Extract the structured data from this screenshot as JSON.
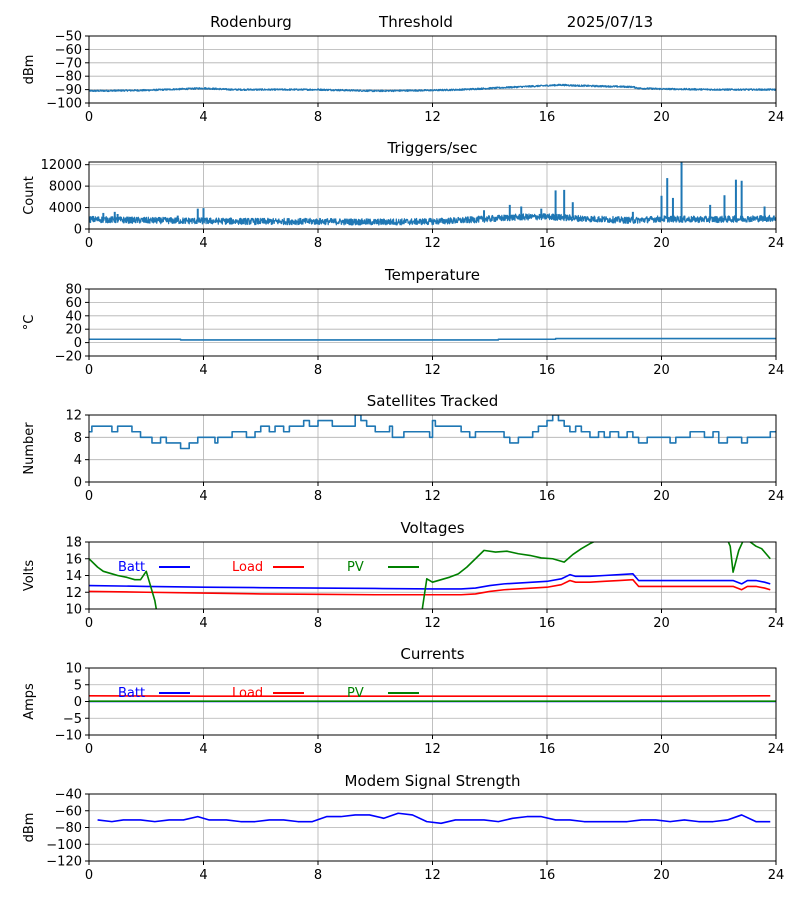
{
  "header": {
    "station": "Rodenburg",
    "mode": "Threshold",
    "date": "2025/07/13"
  },
  "chart_data": [
    {
      "id": "threshold",
      "type": "line",
      "title": "",
      "ylabel": "dBm",
      "xlim": [
        0,
        24
      ],
      "xticks": [
        0,
        4,
        8,
        12,
        16,
        20,
        24
      ],
      "ylim": [
        -100,
        -50
      ],
      "yticks": [
        -100,
        -90,
        -80,
        -70,
        -60,
        -50
      ],
      "grid": true,
      "series": [
        {
          "name": "",
          "color": "#1f77b4",
          "noise": 0.6,
          "x": [
            0,
            2,
            4,
            5,
            8,
            10,
            12,
            13,
            14,
            15,
            16,
            16.5,
            17,
            18,
            19,
            19.2,
            20,
            22,
            24
          ],
          "y": [
            -91,
            -90.5,
            -89,
            -90,
            -90,
            -91,
            -90.5,
            -90,
            -89,
            -88,
            -87,
            -86.5,
            -87,
            -87.5,
            -88,
            -89,
            -89.5,
            -90,
            -90
          ]
        }
      ]
    },
    {
      "id": "triggers",
      "type": "line",
      "title": "Triggers/sec",
      "ylabel": "Count",
      "xlim": [
        0,
        24
      ],
      "xticks": [
        0,
        4,
        8,
        12,
        16,
        20,
        24
      ],
      "ylim": [
        0,
        12500
      ],
      "yticks": [
        0,
        4000,
        8000,
        12000
      ],
      "grid": true,
      "series": [
        {
          "name": "",
          "color": "#1f77b4",
          "noise": 600,
          "x": [
            0,
            2,
            4,
            6,
            8,
            10,
            12,
            13,
            14,
            15,
            16,
            17,
            18,
            19,
            20,
            21,
            22,
            23,
            24
          ],
          "y": [
            1800,
            1600,
            1500,
            1400,
            1400,
            1300,
            1400,
            1600,
            1900,
            2200,
            2300,
            2000,
            1800,
            1600,
            1900,
            1800,
            1800,
            1900,
            2000
          ]
        }
      ],
      "spikes": [
        {
          "x": 0.5,
          "y": 3000
        },
        {
          "x": 0.9,
          "y": 3200
        },
        {
          "x": 1.0,
          "y": 2800
        },
        {
          "x": 3.1,
          "y": 2500
        },
        {
          "x": 3.8,
          "y": 3800
        },
        {
          "x": 4.0,
          "y": 3900
        },
        {
          "x": 13.8,
          "y": 3500
        },
        {
          "x": 14.7,
          "y": 4500
        },
        {
          "x": 15.1,
          "y": 4200
        },
        {
          "x": 15.8,
          "y": 3800
        },
        {
          "x": 16.3,
          "y": 7200
        },
        {
          "x": 16.6,
          "y": 7300
        },
        {
          "x": 16.9,
          "y": 5000
        },
        {
          "x": 19.0,
          "y": 3200
        },
        {
          "x": 20.0,
          "y": 6200
        },
        {
          "x": 20.2,
          "y": 9500
        },
        {
          "x": 20.4,
          "y": 5800
        },
        {
          "x": 20.7,
          "y": 12500
        },
        {
          "x": 21.7,
          "y": 4500
        },
        {
          "x": 22.2,
          "y": 6300
        },
        {
          "x": 22.6,
          "y": 9200
        },
        {
          "x": 22.8,
          "y": 9000
        },
        {
          "x": 23.6,
          "y": 4200
        }
      ]
    },
    {
      "id": "temperature",
      "type": "line",
      "title": "Temperature",
      "ylabel": "°C",
      "xlim": [
        0,
        24
      ],
      "xticks": [
        0,
        4,
        8,
        12,
        16,
        20,
        24
      ],
      "ylim": [
        -20,
        80
      ],
      "yticks": [
        -20,
        0,
        20,
        40,
        60,
        80
      ],
      "grid": true,
      "series": [
        {
          "name": "",
          "color": "#1f77b4",
          "step": true,
          "x": [
            0,
            3.2,
            3.2,
            14.3,
            14.3,
            16.3,
            16.3,
            24
          ],
          "y": [
            5,
            5,
            4,
            4,
            5,
            5,
            6,
            6
          ]
        }
      ]
    },
    {
      "id": "satellites",
      "type": "line",
      "title": "Satellites Tracked",
      "ylabel": "Number",
      "xlim": [
        0,
        24
      ],
      "xticks": [
        0,
        4,
        8,
        12,
        16,
        20,
        24
      ],
      "ylim": [
        0,
        12
      ],
      "yticks": [
        0,
        4,
        8,
        12
      ],
      "grid": true,
      "series": [
        {
          "name": "",
          "color": "#1f77b4",
          "step": true,
          "x": [
            0,
            0.1,
            0.6,
            0.8,
            1.0,
            1.5,
            1.7,
            1.8,
            2.0,
            2.2,
            2.5,
            2.7,
            3.0,
            3.2,
            3.5,
            3.8,
            4.0,
            4.4,
            4.5,
            4.6,
            5.0,
            5.5,
            5.8,
            6.0,
            6.3,
            6.5,
            6.8,
            7.0,
            7.2,
            7.5,
            7.7,
            7.9,
            8.0,
            8.3,
            8.5,
            9.3,
            9.5,
            9.7,
            10.0,
            10.5,
            10.6,
            11.0,
            11.5,
            11.9,
            12.0,
            12.1,
            12.5,
            13.0,
            13.3,
            13.5,
            14.0,
            14.5,
            14.7,
            15.0,
            15.5,
            15.7,
            16.0,
            16.2,
            16.4,
            16.6,
            16.8,
            17.0,
            17.2,
            17.5,
            17.8,
            18.0,
            18.2,
            18.5,
            18.8,
            19.0,
            19.2,
            19.5,
            20.0,
            20.3,
            20.5,
            21.0,
            21.5,
            21.8,
            22.0,
            22.3,
            22.5,
            22.8,
            23.0,
            23.3,
            23.5,
            23.8,
            24
          ],
          "y": [
            9,
            10,
            10,
            9,
            10,
            9,
            9,
            8,
            8,
            7,
            8,
            7,
            7,
            6,
            7,
            8,
            8,
            7,
            8,
            8,
            9,
            8,
            9,
            10,
            9,
            10,
            9,
            10,
            10,
            11,
            10,
            10,
            11,
            11,
            10,
            12,
            11,
            10,
            9,
            10,
            8,
            9,
            9,
            8,
            11,
            10,
            10,
            9,
            8,
            9,
            9,
            8,
            7,
            8,
            9,
            10,
            11,
            12,
            11,
            10,
            9,
            10,
            9,
            8,
            9,
            8,
            9,
            8,
            9,
            8,
            7,
            8,
            8,
            7,
            8,
            9,
            8,
            9,
            7,
            8,
            8,
            7,
            8,
            8,
            8,
            9,
            9
          ]
        }
      ]
    },
    {
      "id": "voltages",
      "type": "line",
      "title": "Voltages",
      "ylabel": "Volts",
      "xlim": [
        0,
        24
      ],
      "xticks": [
        0,
        4,
        8,
        12,
        16,
        20,
        24
      ],
      "ylim": [
        10,
        18
      ],
      "yticks": [
        10,
        12,
        14,
        16,
        18
      ],
      "grid": true,
      "legend": "top-left inside",
      "series": [
        {
          "name": "Batt",
          "color": "#0000ff",
          "x": [
            0,
            2,
            4,
            6,
            8,
            10,
            12,
            13,
            13.5,
            14,
            14.5,
            15,
            15.5,
            16,
            16.5,
            16.8,
            17,
            17.5,
            18,
            18.5,
            19,
            19.2,
            20,
            22,
            22.5,
            22.8,
            23,
            23.3,
            23.6,
            23.8
          ],
          "y": [
            12.8,
            12.7,
            12.6,
            12.55,
            12.5,
            12.45,
            12.4,
            12.4,
            12.5,
            12.8,
            13.0,
            13.1,
            13.2,
            13.3,
            13.6,
            14.1,
            13.9,
            13.9,
            14.0,
            14.1,
            14.2,
            13.4,
            13.4,
            13.4,
            13.4,
            13.0,
            13.4,
            13.4,
            13.2,
            13.0
          ]
        },
        {
          "name": "Load",
          "color": "#ff0000",
          "x": [
            0,
            2,
            4,
            6,
            8,
            10,
            12,
            13,
            13.5,
            14,
            14.5,
            15,
            15.5,
            16,
            16.5,
            16.8,
            17,
            17.5,
            18,
            18.5,
            19,
            19.2,
            20,
            22,
            22.5,
            22.8,
            23,
            23.3,
            23.6,
            23.8
          ],
          "y": [
            12.1,
            12.0,
            11.9,
            11.8,
            11.75,
            11.7,
            11.7,
            11.7,
            11.8,
            12.1,
            12.3,
            12.4,
            12.5,
            12.6,
            12.9,
            13.4,
            13.2,
            13.2,
            13.3,
            13.4,
            13.5,
            12.7,
            12.7,
            12.7,
            12.7,
            12.3,
            12.7,
            12.7,
            12.5,
            12.3
          ]
        },
        {
          "name": "PV",
          "color": "#008000",
          "x": [
            0,
            0.3,
            0.5,
            0.8,
            1.0,
            1.3,
            1.6,
            1.8,
            2.0,
            2.3,
            2.4,
            11.6,
            11.8,
            12.0,
            12.3,
            12.6,
            12.9,
            13.2,
            13.5,
            13.8,
            14.2,
            14.6,
            15.0,
            15.4,
            15.8,
            16.2,
            16.6,
            16.9,
            17.2,
            17.5,
            17.8,
            22.3,
            22.4,
            22.5,
            22.7,
            22.9,
            23.1,
            23.3,
            23.5,
            23.8
          ],
          "y": [
            16,
            15,
            14.5,
            14.2,
            14,
            13.8,
            13.5,
            13.5,
            14.5,
            11,
            9,
            9,
            13.6,
            13.2,
            13.5,
            13.8,
            14.2,
            15,
            16,
            17,
            16.8,
            16.9,
            16.6,
            16.4,
            16.1,
            16,
            15.6,
            16.5,
            17.2,
            17.8,
            18.3,
            18.3,
            17.5,
            14.4,
            17,
            18.5,
            18,
            17.5,
            17.2,
            16
          ]
        }
      ]
    },
    {
      "id": "currents",
      "type": "line",
      "title": "Currents",
      "ylabel": "Amps",
      "xlim": [
        0,
        24
      ],
      "xticks": [
        0,
        4,
        8,
        12,
        16,
        20,
        24
      ],
      "ylim": [
        -10,
        10
      ],
      "yticks": [
        -10,
        -5,
        0,
        5,
        10
      ],
      "grid": true,
      "legend": "top-left inside",
      "series": [
        {
          "name": "Batt",
          "color": "#0000ff",
          "x": [
            0,
            24
          ],
          "y": [
            0,
            0
          ]
        },
        {
          "name": "Load",
          "color": "#ff0000",
          "x": [
            0,
            4,
            8,
            12,
            16,
            20,
            23.8
          ],
          "y": [
            1.7,
            1.6,
            1.6,
            1.6,
            1.6,
            1.6,
            1.7
          ]
        },
        {
          "name": "PV",
          "color": "#008000",
          "x": [
            0,
            24
          ],
          "y": [
            0.1,
            0.1
          ]
        }
      ]
    },
    {
      "id": "modem",
      "type": "line",
      "title": "Modem Signal Strength",
      "ylabel": "dBm",
      "xlim": [
        0,
        24
      ],
      "xticks": [
        0,
        4,
        8,
        12,
        16,
        20,
        24
      ],
      "ylim": [
        -120,
        -40
      ],
      "yticks": [
        -120,
        -100,
        -80,
        -60,
        -40
      ],
      "grid": true,
      "series": [
        {
          "name": "",
          "color": "#0000ff",
          "x": [
            0.3,
            0.8,
            1.2,
            1.8,
            2.3,
            2.8,
            3.3,
            3.8,
            4.2,
            4.8,
            5.3,
            5.8,
            6.3,
            6.8,
            7.3,
            7.8,
            8.3,
            8.8,
            9.3,
            9.8,
            10.3,
            10.8,
            11.3,
            11.8,
            12.3,
            12.8,
            13.3,
            13.8,
            14.3,
            14.8,
            15.3,
            15.8,
            16.3,
            16.8,
            17.3,
            17.8,
            18.3,
            18.8,
            19.3,
            19.8,
            20.3,
            20.8,
            21.3,
            21.8,
            22.3,
            22.8,
            23.3,
            23.8
          ],
          "y": [
            -71,
            -73,
            -71,
            -71,
            -73,
            -71,
            -71,
            -67,
            -71,
            -71,
            -73,
            -73,
            -71,
            -71,
            -73,
            -73,
            -67,
            -67,
            -65,
            -65,
            -69,
            -63,
            -65,
            -73,
            -75,
            -71,
            -71,
            -71,
            -73,
            -69,
            -67,
            -67,
            -71,
            -71,
            -73,
            -73,
            -73,
            -73,
            -71,
            -71,
            -73,
            -71,
            -73,
            -73,
            -71,
            -65,
            -73,
            -73
          ]
        }
      ]
    }
  ]
}
